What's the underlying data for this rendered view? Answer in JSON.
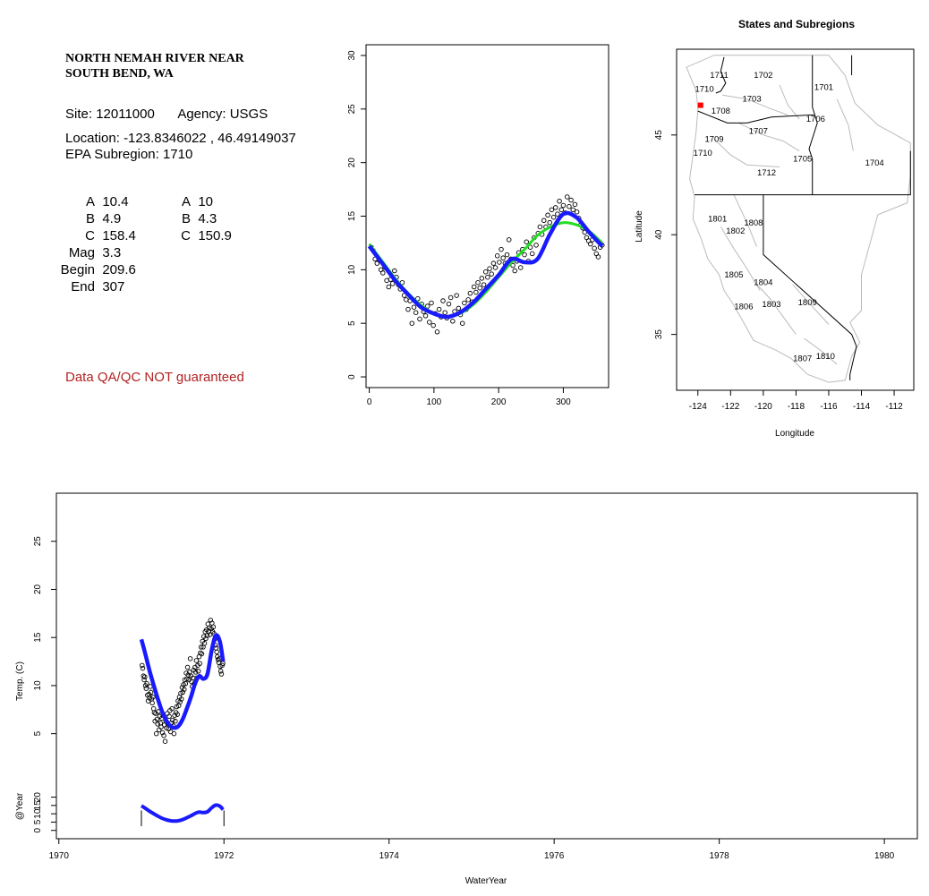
{
  "site_panel": {
    "title_lines": [
      "NORTH NEMAH RIVER NEAR",
      "SOUTH BEND, WA"
    ],
    "site_label": "Site:",
    "site_id": "12011000",
    "agency_label": "Agency:",
    "agency": "USGS",
    "location_label": "Location:",
    "longitude": "-123.8346022",
    "latitude": "46.49149037",
    "subregion_label": "EPA Subregion:",
    "subregion": "1710",
    "params_left": [
      {
        "label": "A",
        "value": "10.4"
      },
      {
        "label": "B",
        "value": "4.9"
      },
      {
        "label": "C",
        "value": "158.4"
      },
      {
        "label": "Mag",
        "value": "3.3"
      },
      {
        "label": "Begin",
        "value": "209.6"
      },
      {
        "label": "End",
        "value": "307"
      }
    ],
    "params_right": [
      {
        "label": "A",
        "value": "10"
      },
      {
        "label": "B",
        "value": "4.3"
      },
      {
        "label": "C",
        "value": "150.9"
      }
    ],
    "qa_note": "Data QA/QC NOT guaranteed"
  },
  "colors": {
    "points": "#000000",
    "smooth_fit": "#1a1aff",
    "sine_fit": "#22dd22",
    "site_marker": "#ff0000",
    "qa_text": "#b22222",
    "map_lines": "#bbbbbb"
  },
  "chart_data": [
    {
      "type": "scatter",
      "title": "",
      "xlabel": "",
      "ylabel": "",
      "xlim": [
        -5,
        370
      ],
      "ylim": [
        -1,
        31
      ],
      "x_ticks": [
        0,
        100,
        200,
        300
      ],
      "y_ticks": [
        0,
        5,
        10,
        15,
        20,
        25,
        30
      ],
      "grid": false,
      "legend": "none",
      "series": [
        {
          "kind": "points",
          "x": [
            3,
            6,
            9,
            12,
            15,
            18,
            21,
            24,
            27,
            30,
            33,
            36,
            39,
            42,
            45,
            48,
            51,
            54,
            57,
            60,
            63,
            66,
            69,
            72,
            75,
            78,
            81,
            84,
            87,
            90,
            93,
            96,
            99,
            102,
            105,
            108,
            111,
            114,
            117,
            120,
            123,
            126,
            129,
            132,
            135,
            138,
            141,
            144,
            147,
            150,
            153,
            156,
            159,
            162,
            165,
            168,
            171,
            174,
            177,
            180,
            183,
            186,
            189,
            192,
            195,
            198,
            201,
            204,
            207,
            210,
            213,
            216,
            219,
            222,
            225,
            228,
            231,
            234,
            237,
            240,
            243,
            246,
            249,
            252,
            255,
            258,
            261,
            264,
            267,
            270,
            273,
            276,
            279,
            282,
            285,
            288,
            291,
            294,
            297,
            300,
            303,
            306,
            309,
            312,
            315,
            318,
            321,
            324,
            327,
            330,
            333,
            336,
            339,
            342,
            345,
            348,
            351,
            354,
            357,
            360
          ],
          "y": [
            12.1,
            11.8,
            11.0,
            10.6,
            10.9,
            10.0,
            9.7,
            10.2,
            9.0,
            8.4,
            9.1,
            8.7,
            9.9,
            9.3,
            8.6,
            8.2,
            8.8,
            7.6,
            7.2,
            6.3,
            7.1,
            5.0,
            6.5,
            6.0,
            7.3,
            5.4,
            6.8,
            6.1,
            5.7,
            6.6,
            5.1,
            6.9,
            4.8,
            5.9,
            4.2,
            6.3,
            5.6,
            7.1,
            6.0,
            5.5,
            6.8,
            7.4,
            5.2,
            6.1,
            7.6,
            6.4,
            5.8,
            5.0,
            6.9,
            6.3,
            7.2,
            7.8,
            7.0,
            8.4,
            7.9,
            8.8,
            8.3,
            9.2,
            8.6,
            9.8,
            9.3,
            10.1,
            9.6,
            10.6,
            10.2,
            11.3,
            10.7,
            11.9,
            11.1,
            10.6,
            11.4,
            12.8,
            11.0,
            10.4,
            9.9,
            10.8,
            11.6,
            10.2,
            11.9,
            11.4,
            12.6,
            10.8,
            12.1,
            11.5,
            13.0,
            12.3,
            13.4,
            14.0,
            13.3,
            14.6,
            14.0,
            15.1,
            14.4,
            15.6,
            14.9,
            15.8,
            15.2,
            16.4,
            15.6,
            16.0,
            15.3,
            16.8,
            15.9,
            16.5,
            15.6,
            16.1,
            15.4,
            14.8,
            14.2,
            13.9,
            13.5,
            13.0,
            12.7,
            12.4,
            12.8,
            12.0,
            11.5,
            11.2,
            12.1,
            12.3
          ]
        },
        {
          "kind": "line",
          "name": "",
          "x": [
            0,
            20,
            40,
            60,
            80,
            100,
            120,
            140,
            160,
            180,
            200,
            220,
            240,
            260,
            280,
            300,
            320,
            340,
            360
          ],
          "y": [
            12.2,
            10.6,
            9.0,
            7.7,
            6.5,
            5.9,
            5.6,
            6.0,
            6.9,
            8.2,
            9.5,
            11.0,
            10.7,
            11.0,
            13.4,
            15.2,
            14.9,
            13.5,
            12.2
          ]
        },
        {
          "kind": "line",
          "name": "",
          "x": [
            0,
            20,
            40,
            60,
            80,
            100,
            120,
            140,
            160,
            180,
            200,
            220,
            240,
            260,
            280,
            300,
            320,
            340,
            360
          ],
          "y": [
            12.4,
            10.8,
            9.2,
            7.8,
            6.7,
            5.9,
            5.6,
            5.9,
            6.7,
            7.9,
            9.3,
            10.7,
            11.9,
            13.2,
            14.0,
            14.4,
            14.2,
            13.6,
            12.5
          ]
        }
      ]
    },
    {
      "type": "map",
      "title": "States and Subregions",
      "xlabel": "Longitude",
      "ylabel": "Latitude",
      "xlim": [
        -125.3,
        -110.8
      ],
      "ylim": [
        32.2,
        49.3
      ],
      "x_ticks": [
        -124,
        -122,
        -120,
        -118,
        -116,
        -114,
        -112
      ],
      "y_ticks": [
        35,
        40,
        45
      ],
      "subregion_labels": [
        {
          "label": "1702",
          "lon": -120.0,
          "lat": 48.0
        },
        {
          "label": "1701",
          "lon": -116.3,
          "lat": 47.4
        },
        {
          "label": "1711",
          "lon": -122.7,
          "lat": 48.0
        },
        {
          "label": "1710",
          "lon": -123.6,
          "lat": 47.3
        },
        {
          "label": "1703",
          "lon": -120.7,
          "lat": 46.8
        },
        {
          "label": "1708",
          "lon": -122.6,
          "lat": 46.2
        },
        {
          "label": "1706",
          "lon": -116.8,
          "lat": 45.8
        },
        {
          "label": "1707",
          "lon": -120.3,
          "lat": 45.2
        },
        {
          "label": "1709",
          "lon": -123.0,
          "lat": 44.8
        },
        {
          "label": "1710",
          "lon": -123.7,
          "lat": 44.1
        },
        {
          "label": "1705",
          "lon": -117.6,
          "lat": 43.8
        },
        {
          "label": "1704",
          "lon": -113.2,
          "lat": 43.6
        },
        {
          "label": "1712",
          "lon": -119.8,
          "lat": 43.1
        },
        {
          "label": "1801",
          "lon": -122.8,
          "lat": 40.8
        },
        {
          "label": "1808",
          "lon": -120.6,
          "lat": 40.6
        },
        {
          "label": "1802",
          "lon": -121.7,
          "lat": 40.2
        },
        {
          "label": "1805",
          "lon": -121.8,
          "lat": 38.0
        },
        {
          "label": "1804",
          "lon": -120.0,
          "lat": 37.6
        },
        {
          "label": "1806",
          "lon": -121.2,
          "lat": 36.4
        },
        {
          "label": "1803",
          "lon": -119.5,
          "lat": 36.5
        },
        {
          "label": "1809",
          "lon": -117.3,
          "lat": 36.6
        },
        {
          "label": "1810",
          "lon": -116.2,
          "lat": 33.9
        },
        {
          "label": "1807",
          "lon": -117.6,
          "lat": 33.8
        }
      ],
      "site": {
        "lon": -123.8346022,
        "lat": 46.49149037
      }
    },
    {
      "type": "scatter",
      "title": "",
      "xlabel": "WaterYear",
      "ylabel": "Temp. (C)",
      "ylabel_lower": "@Year",
      "xlim": [
        1969.97,
        1980.4
      ],
      "ylim": [
        0.5,
        30
      ],
      "x_ticks": [
        1970,
        1972,
        1974,
        1976,
        1978,
        1980
      ],
      "y_ticks": [
        5,
        10,
        15,
        20,
        25
      ],
      "lower_ylim": [
        -5,
        30
      ],
      "lower_y_ticks": [
        0,
        5,
        10,
        15,
        20
      ],
      "grid": false,
      "legend": "none",
      "series": [
        {
          "kind": "points",
          "year_start": 1971.0,
          "year_end": 1972.0,
          "note_ref": "same daily values as seasonal panel"
        },
        {
          "kind": "line",
          "name": "",
          "x": [
            1971.0,
            1971.05,
            1971.1,
            1971.15,
            1971.2,
            1971.25,
            1971.3,
            1971.35,
            1971.4,
            1971.45,
            1971.5,
            1971.55,
            1971.6,
            1971.65,
            1971.7,
            1971.75,
            1971.8,
            1971.85,
            1971.9,
            1971.95,
            1971.99
          ],
          "y": [
            14.8,
            13.2,
            11.5,
            10.0,
            8.6,
            7.3,
            6.4,
            5.8,
            5.6,
            5.8,
            6.5,
            7.6,
            8.8,
            10.2,
            11.0,
            10.7,
            11.2,
            13.6,
            15.2,
            14.6,
            12.5
          ]
        }
      ],
      "year_bounds": [
        1971.0,
        1972.0
      ]
    }
  ]
}
